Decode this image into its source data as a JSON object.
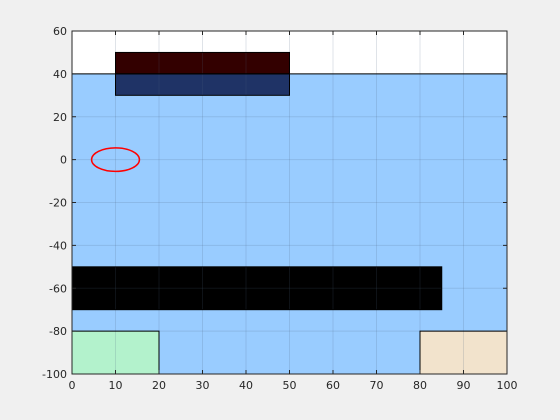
{
  "chart_data": {
    "type": "area",
    "title": "",
    "xlabel": "",
    "ylabel": "",
    "xlim": [
      0,
      100
    ],
    "ylim": [
      -100,
      60
    ],
    "xticks": [
      0,
      10,
      20,
      30,
      40,
      50,
      60,
      70,
      80,
      90,
      100
    ],
    "yticks": [
      -100,
      -80,
      -60,
      -40,
      -20,
      0,
      20,
      40,
      60
    ],
    "grid": true,
    "shapes": [
      {
        "id": "water-region",
        "kind": "rect",
        "x": [
          0,
          100
        ],
        "y": [
          -100,
          40
        ],
        "fill": "#99ccff",
        "edge": "#000000"
      },
      {
        "id": "dark-red-block",
        "kind": "rect",
        "x": [
          10,
          50
        ],
        "y": [
          40,
          50
        ],
        "fill": "#330000",
        "edge": "#000000"
      },
      {
        "id": "navy-block",
        "kind": "rect",
        "x": [
          10,
          50
        ],
        "y": [
          30,
          40
        ],
        "fill": "#1f3366",
        "edge": "#000000"
      },
      {
        "id": "black-bar",
        "kind": "rect",
        "x": [
          0,
          85
        ],
        "y": [
          -70,
          -50
        ],
        "fill": "#000000",
        "edge": "#000000"
      },
      {
        "id": "green-block",
        "kind": "rect",
        "x": [
          0,
          20
        ],
        "y": [
          -100,
          -80
        ],
        "fill": "#b3f2cc",
        "edge": "#000000"
      },
      {
        "id": "beige-block",
        "kind": "rect",
        "x": [
          80,
          100
        ],
        "y": [
          -100,
          -80
        ],
        "fill": "#f2e3cc",
        "edge": "#000000"
      },
      {
        "id": "red-ellipse",
        "kind": "ellipse",
        "cx": 10,
        "cy": 0,
        "rx": 5.5,
        "ry": 5.5,
        "fill": "none",
        "edge": "#ff0000"
      }
    ],
    "colors": {
      "axes_background": "#ffffff",
      "figure_background": "#f0f0f0",
      "grid": "#4d6680",
      "axis": "#262626"
    }
  }
}
